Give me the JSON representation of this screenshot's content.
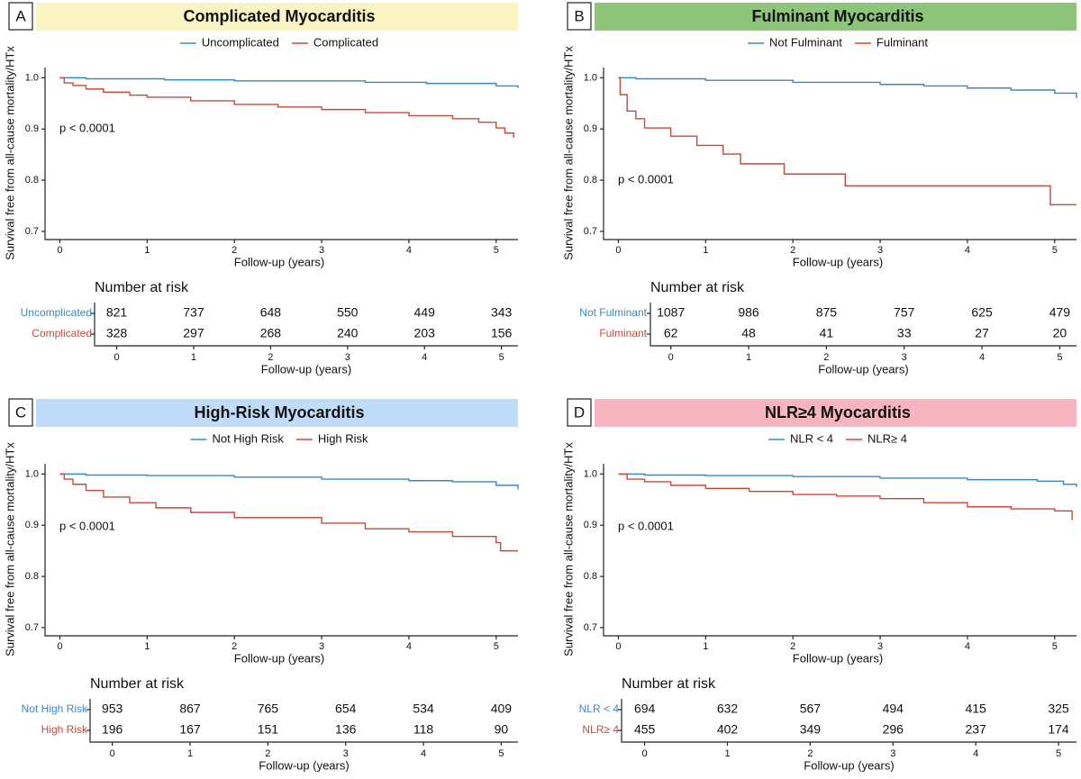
{
  "chart_data": [
    {
      "type": "step",
      "panel_label": "A",
      "title": "Complicated Myocarditis",
      "title_bg": "#faf3c2",
      "xlabel": "Follow-up (years)",
      "ylabel": "Survival free from all-cause mortality/HTx",
      "annotation": "p < 0.0001",
      "xlim": [
        -0.17,
        5.25
      ],
      "xticks": [
        0,
        1,
        2,
        3,
        4,
        5
      ],
      "ylim": [
        0.684,
        1.02
      ],
      "yticks": [
        0.7,
        0.8,
        0.9,
        {
          "value": 1,
          "label": "1.0"
        }
      ],
      "series": [
        {
          "name": "Uncomplicated",
          "color": "#3a87c8",
          "x": [
            0,
            0.3,
            1.2,
            2.0,
            3.5,
            4.2,
            5.0,
            5.25
          ],
          "values": [
            1.0,
            0.998,
            0.996,
            0.994,
            0.991,
            0.989,
            0.984,
            0.98
          ]
        },
        {
          "name": "Complicated",
          "color": "#c9483b",
          "x": [
            0,
            0.05,
            0.15,
            0.3,
            0.5,
            0.8,
            1.0,
            1.5,
            2.0,
            2.5,
            3.0,
            3.5,
            4.0,
            4.5,
            4.8,
            5.0,
            5.1,
            5.2
          ],
          "values": [
            1.0,
            0.99,
            0.985,
            0.978,
            0.972,
            0.966,
            0.962,
            0.955,
            0.948,
            0.943,
            0.938,
            0.932,
            0.926,
            0.92,
            0.913,
            0.902,
            0.892,
            0.883
          ]
        }
      ],
      "risk_table": {
        "title": "Number at risk",
        "rows": [
          [
            821,
            737,
            648,
            550,
            449,
            343
          ],
          [
            328,
            297,
            268,
            240,
            203,
            156
          ]
        ]
      }
    },
    {
      "type": "step",
      "panel_label": "B",
      "title": "Fulminant Myocarditis",
      "title_bg": "#8dc67a",
      "xlabel": "Follow-up (years)",
      "ylabel": "Survival free from all-cause mortality/HTx",
      "annotation": "p < 0.0001",
      "xlim": [
        -0.17,
        5.25
      ],
      "xticks": [
        0,
        1,
        2,
        3,
        4,
        5
      ],
      "ylim": [
        0.684,
        1.02
      ],
      "yticks": [
        0.7,
        0.8,
        0.9,
        {
          "value": 1,
          "label": "1.0"
        }
      ],
      "series": [
        {
          "name": "Not Fulminant",
          "color": "#3a87c8",
          "x": [
            0,
            0.2,
            1,
            2,
            3,
            3.5,
            4,
            4.5,
            5,
            5.25
          ],
          "values": [
            1.0,
            0.998,
            0.995,
            0.991,
            0.987,
            0.984,
            0.98,
            0.976,
            0.97,
            0.96
          ]
        },
        {
          "name": "Fulminant",
          "color": "#c9483b",
          "x": [
            0,
            0.02,
            0.1,
            0.2,
            0.3,
            0.6,
            0.9,
            1.2,
            1.4,
            1.9,
            2.6,
            4.95,
            5.25
          ],
          "values": [
            1.0,
            0.967,
            0.935,
            0.92,
            0.902,
            0.886,
            0.868,
            0.851,
            0.832,
            0.812,
            0.789,
            0.752,
            0.752
          ]
        }
      ],
      "risk_table": {
        "title": "Number at risk",
        "rows": [
          [
            1087,
            986,
            875,
            757,
            625,
            479
          ],
          [
            62,
            48,
            41,
            33,
            27,
            20
          ]
        ]
      }
    },
    {
      "type": "step",
      "panel_label": "C",
      "title": "High-Risk Myocarditis",
      "title_bg": "#bfdcf8",
      "xlabel": "Follow-up (years)",
      "ylabel": "Survival free from all-cause mortality/HTx",
      "annotation": "p < 0.0001",
      "xlim": [
        -0.17,
        5.25
      ],
      "xticks": [
        0,
        1,
        2,
        3,
        4,
        5
      ],
      "ylim": [
        0.684,
        1.02
      ],
      "yticks": [
        0.7,
        0.8,
        0.9,
        {
          "value": 1,
          "label": "1.0"
        }
      ],
      "series": [
        {
          "name": "Not High Risk",
          "color": "#3a87c8",
          "x": [
            0,
            0.3,
            1,
            2,
            3,
            4,
            4.5,
            5,
            5.25
          ],
          "values": [
            1.0,
            0.998,
            0.997,
            0.994,
            0.99,
            0.987,
            0.985,
            0.978,
            0.97
          ]
        },
        {
          "name": "High Risk",
          "color": "#c9483b",
          "x": [
            0,
            0.05,
            0.15,
            0.3,
            0.5,
            0.8,
            1.1,
            1.5,
            2.0,
            3.0,
            3.5,
            4.0,
            4.5,
            5.0,
            5.05,
            5.25
          ],
          "values": [
            1.0,
            0.99,
            0.98,
            0.968,
            0.955,
            0.944,
            0.934,
            0.925,
            0.915,
            0.904,
            0.893,
            0.887,
            0.878,
            0.866,
            0.85,
            0.85
          ]
        }
      ],
      "risk_table": {
        "title": "Number at risk",
        "rows": [
          [
            953,
            867,
            765,
            654,
            534,
            409
          ],
          [
            196,
            167,
            151,
            136,
            118,
            90
          ]
        ]
      }
    },
    {
      "type": "step",
      "panel_label": "D",
      "title": "NLR≥4 Myocarditis",
      "title_bg": "#f6b5c0",
      "xlabel": "Follow-up (years)",
      "ylabel": "Survival free from all-cause mortality/HTx",
      "annotation": "p < 0.0001",
      "xlim": [
        -0.17,
        5.25
      ],
      "xticks": [
        0,
        1,
        2,
        3,
        4,
        5
      ],
      "ylim": [
        0.684,
        1.02
      ],
      "yticks": [
        0.7,
        0.8,
        0.9,
        {
          "value": 1,
          "label": "1.0"
        }
      ],
      "series": [
        {
          "name": "NLR < 4",
          "color": "#3a87c8",
          "x": [
            0,
            0.3,
            1,
            2,
            3,
            4,
            4.8,
            5.1,
            5.25
          ],
          "values": [
            1.0,
            0.998,
            0.997,
            0.995,
            0.992,
            0.989,
            0.986,
            0.98,
            0.975
          ]
        },
        {
          "name": "NLR≥ 4",
          "color": "#c9483b",
          "x": [
            0,
            0.1,
            0.3,
            0.6,
            1.0,
            1.5,
            2.0,
            2.5,
            3.0,
            3.5,
            4.0,
            4.5,
            5.0,
            5.2
          ],
          "values": [
            1.0,
            0.99,
            0.985,
            0.978,
            0.972,
            0.966,
            0.96,
            0.957,
            0.952,
            0.944,
            0.936,
            0.932,
            0.928,
            0.91
          ]
        }
      ],
      "risk_table": {
        "title": "Number at risk",
        "rows": [
          [
            694,
            632,
            567,
            494,
            415,
            325
          ],
          [
            455,
            402,
            349,
            296,
            237,
            174
          ]
        ]
      }
    }
  ]
}
